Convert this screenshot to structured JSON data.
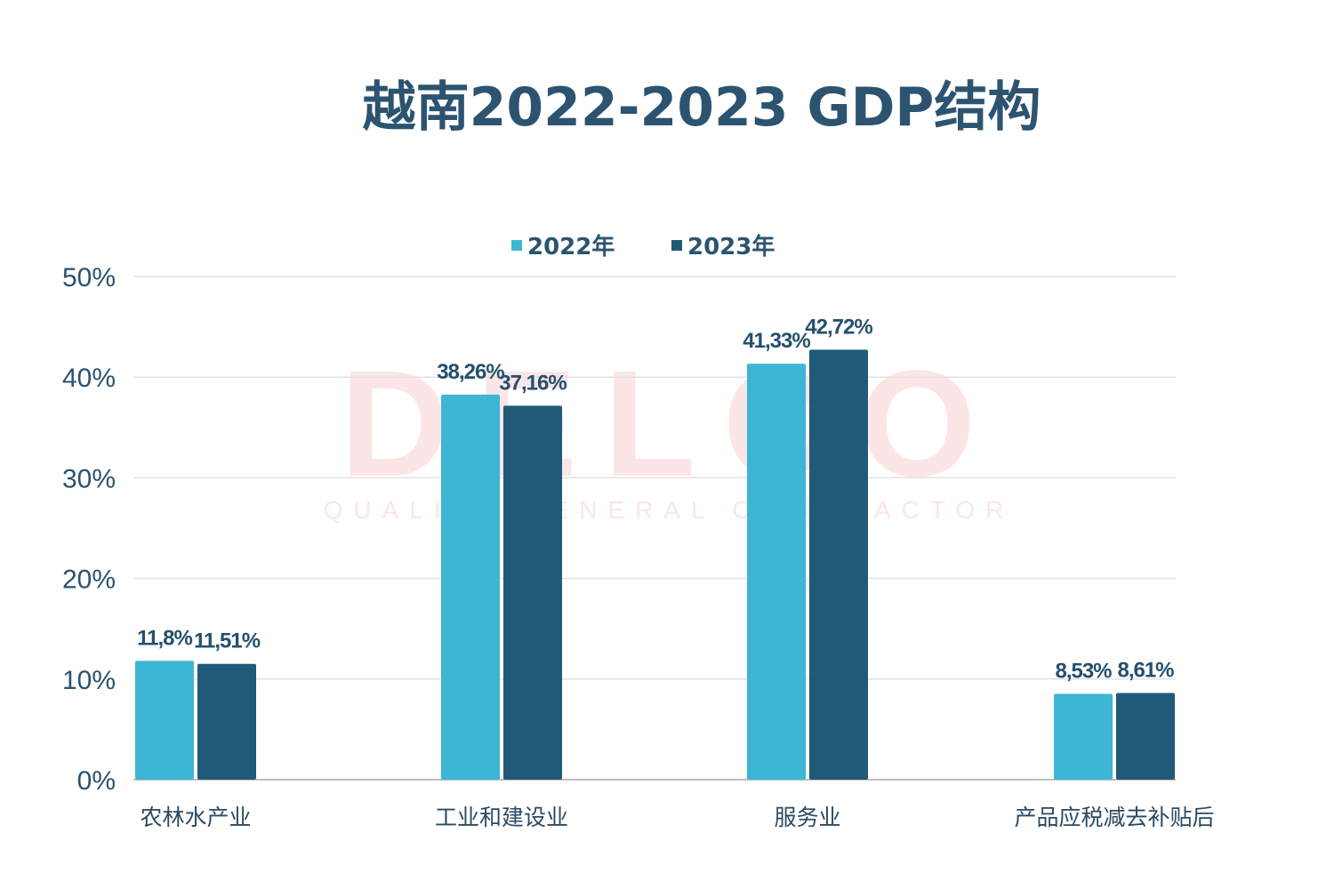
{
  "chart_data": {
    "type": "bar",
    "title": "越南2022-2023 GDP结构",
    "categories": [
      "农林水产业",
      "工业和建设业",
      "服务业",
      "产品应税减去补贴后"
    ],
    "series": [
      {
        "name": "2022年",
        "values": [
          11.8,
          38.26,
          41.33,
          8.53
        ],
        "labels": [
          "11,8%",
          "38,26%",
          "41,33%",
          "8,53%"
        ],
        "color": "#3db5d4"
      },
      {
        "name": "2023年",
        "values": [
          11.51,
          37.16,
          42.72,
          8.61
        ],
        "labels": [
          "11,51%",
          "37,16%",
          "42,72%",
          "8,61%"
        ],
        "color": "#215a78"
      }
    ],
    "ylim": [
      0,
      50
    ],
    "yticks": [
      "0%",
      "10%",
      "20%",
      "30%",
      "40%",
      "50%"
    ],
    "xlabel": "",
    "ylabel": "",
    "grid": true,
    "legend_position": "top-center"
  },
  "watermark": {
    "logo": "DELCO",
    "tagline": "QUALITY GENERAL CONTRACTOR"
  }
}
